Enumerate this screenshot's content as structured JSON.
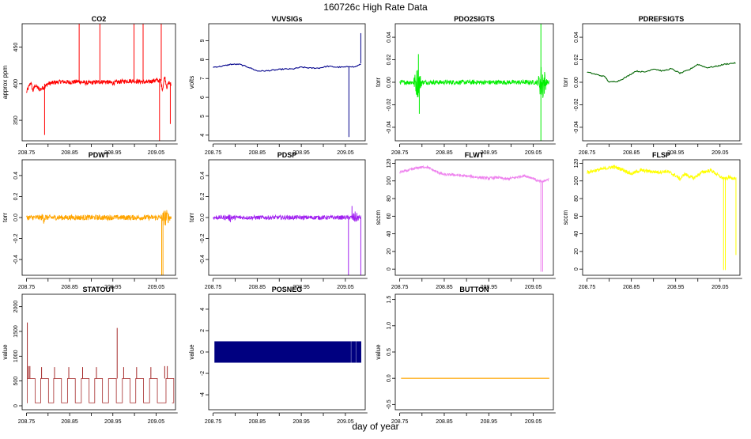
{
  "figure": {
    "title": "160726c   High Rate Data",
    "xlabel": "day of year"
  },
  "chart_data": [
    {
      "type": "line",
      "title": "CO2",
      "ylabel": "approx ppm",
      "color": "#ff0000",
      "xlim": [
        208.74,
        209.095
      ],
      "ylim": [
        322,
        482
      ],
      "yticks": [
        {
          "v": 350,
          "l": "350"
        },
        {
          "v": 400,
          "l": "400"
        },
        {
          "v": 450,
          "l": "450"
        }
      ],
      "xticks": [
        {
          "v": 208.75,
          "l": "208.75"
        },
        {
          "v": 208.85,
          "l": "208.85"
        },
        {
          "v": 208.95,
          "l": "208.95"
        },
        {
          "v": 209.05,
          "l": "209.05"
        }
      ],
      "style": "noisy",
      "amp": 3,
      "x": [
        208.75,
        208.755,
        208.76,
        208.765,
        208.77,
        208.78,
        208.79,
        208.8,
        208.81,
        208.83,
        208.85,
        208.87,
        208.89,
        208.91,
        208.93,
        208.95,
        208.97,
        208.99,
        209.01,
        209.03,
        209.05,
        209.06,
        209.065,
        209.07,
        209.075,
        209.08,
        209.085
      ],
      "y": [
        388,
        395,
        402,
        390,
        398,
        392,
        395,
        400,
        401,
        403,
        402,
        403,
        401,
        402,
        403,
        401,
        403,
        404,
        403,
        402,
        405,
        404,
        392,
        410,
        395,
        402,
        398
      ],
      "spikes": [
        {
          "x": 208.792,
          "from": 400,
          "to": 330
        },
        {
          "x": 208.872,
          "from": 402,
          "to": 482
        },
        {
          "x": 208.92,
          "from": 402,
          "to": 482
        },
        {
          "x": 208.999,
          "from": 403,
          "to": 482
        },
        {
          "x": 209.02,
          "from": 403,
          "to": 482
        },
        {
          "x": 209.058,
          "from": 404,
          "to": 322
        },
        {
          "x": 209.062,
          "from": 404,
          "to": 482
        },
        {
          "x": 209.083,
          "from": 400,
          "to": 345
        }
      ]
    },
    {
      "type": "line",
      "title": "VUVSIGs",
      "ylabel": "volts",
      "color": "#00008b",
      "xlim": [
        208.74,
        209.095
      ],
      "ylim": [
        3.7,
        9.9
      ],
      "yticks": [
        {
          "v": 4,
          "l": "4"
        },
        {
          "v": 5,
          "l": "5"
        },
        {
          "v": 6,
          "l": "6"
        },
        {
          "v": 7,
          "l": "7"
        },
        {
          "v": 8,
          "l": "8"
        },
        {
          "v": 9,
          "l": "9"
        }
      ],
      "xticks": [
        {
          "v": 208.75,
          "l": "208.75"
        },
        {
          "v": 208.85,
          "l": "208.85"
        },
        {
          "v": 208.95,
          "l": "208.95"
        },
        {
          "v": 209.05,
          "l": "209.05"
        }
      ],
      "style": "smooth",
      "amp": 0.03,
      "x": [
        208.75,
        208.77,
        208.79,
        208.81,
        208.83,
        208.85,
        208.87,
        208.89,
        208.91,
        208.93,
        208.95,
        208.97,
        208.99,
        209.01,
        209.03,
        209.05,
        209.06,
        209.07,
        209.08,
        209.085
      ],
      "y": [
        7.6,
        7.65,
        7.75,
        7.75,
        7.6,
        7.4,
        7.4,
        7.45,
        7.5,
        7.5,
        7.6,
        7.55,
        7.55,
        7.65,
        7.6,
        7.6,
        7.65,
        7.6,
        7.7,
        7.75
      ],
      "spikes": [
        {
          "x": 209.058,
          "from": 7.6,
          "to": 3.9
        },
        {
          "x": 209.085,
          "from": 7.8,
          "to": 9.4
        }
      ]
    },
    {
      "type": "line",
      "title": "PDO2SIGTS",
      "ylabel": "torr",
      "color": "#00ee00",
      "xlim": [
        208.74,
        209.095
      ],
      "ylim": [
        -0.052,
        0.052
      ],
      "yticks": [
        {
          "v": -0.04,
          "l": "-0.04"
        },
        {
          "v": -0.02,
          "l": "-0.02"
        },
        {
          "v": 0,
          "l": "0.00"
        },
        {
          "v": 0.02,
          "l": "0.02"
        },
        {
          "v": 0.04,
          "l": "0.04"
        }
      ],
      "xticks": [
        {
          "v": 208.75,
          "l": "208.75"
        },
        {
          "v": 208.85,
          "l": "208.85"
        },
        {
          "v": 208.95,
          "l": "208.95"
        },
        {
          "v": 209.05,
          "l": "209.05"
        }
      ],
      "style": "noisy",
      "amp": 0.002,
      "x": [
        208.75,
        208.78,
        208.8,
        208.85,
        208.9,
        208.95,
        209.0,
        209.05,
        209.085
      ],
      "y": [
        0,
        0,
        0,
        0,
        0,
        0,
        0,
        0,
        0
      ],
      "bursts": [
        {
          "x": 208.79,
          "w": 0.012,
          "amp": 0.015
        },
        {
          "x": 209.07,
          "w": 0.012,
          "amp": 0.02
        }
      ],
      "spikes": [
        {
          "x": 208.792,
          "from": 0,
          "to": 0.025
        },
        {
          "x": 208.794,
          "from": 0,
          "to": -0.028
        },
        {
          "x": 209.067,
          "from": 0,
          "to": 0.052
        },
        {
          "x": 209.067,
          "from": 0,
          "to": -0.052
        }
      ]
    },
    {
      "type": "line",
      "title": "PDREFSIGTS",
      "ylabel": "torr",
      "color": "#006400",
      "xlim": [
        208.74,
        209.095
      ],
      "ylim": [
        -0.052,
        0.052
      ],
      "yticks": [
        {
          "v": -0.04,
          "l": "-0.04"
        },
        {
          "v": -0.02,
          "l": "-0.02"
        },
        {
          "v": 0,
          "l": "0.00"
        },
        {
          "v": 0.02,
          "l": "0.02"
        },
        {
          "v": 0.04,
          "l": "0.04"
        }
      ],
      "xticks": [
        {
          "v": 208.75,
          "l": "208.75"
        },
        {
          "v": 208.85,
          "l": "208.85"
        },
        {
          "v": 208.95,
          "l": "208.95"
        },
        {
          "v": 209.05,
          "l": "209.05"
        }
      ],
      "style": "smooth",
      "amp": 0.0005,
      "x": [
        208.75,
        208.77,
        208.79,
        208.8,
        208.82,
        208.84,
        208.86,
        208.88,
        208.9,
        208.92,
        208.94,
        208.96,
        208.98,
        209.0,
        209.02,
        209.04,
        209.06,
        209.08,
        209.085
      ],
      "y": [
        0.009,
        0.007,
        0.005,
        0.0,
        0.001,
        0.005,
        0.01,
        0.009,
        0.012,
        0.01,
        0.012,
        0.008,
        0.011,
        0.016,
        0.013,
        0.014,
        0.016,
        0.017,
        0.017
      ]
    },
    {
      "type": "line",
      "title": "PDWT",
      "ylabel": "torr",
      "color": "#ffa500",
      "xlim": [
        208.74,
        209.095
      ],
      "ylim": [
        -0.55,
        0.55
      ],
      "yticks": [
        {
          "v": -0.4,
          "l": "-0.4"
        },
        {
          "v": -0.2,
          "l": "-0.2"
        },
        {
          "v": 0,
          "l": "0.0"
        },
        {
          "v": 0.2,
          "l": "0.2"
        },
        {
          "v": 0.4,
          "l": "0.4"
        }
      ],
      "xticks": [
        {
          "v": 208.75,
          "l": "208.75"
        },
        {
          "v": 208.85,
          "l": "208.85"
        },
        {
          "v": 208.95,
          "l": "208.95"
        },
        {
          "v": 209.05,
          "l": "209.05"
        }
      ],
      "style": "noisy",
      "amp": 0.025,
      "x": [
        208.75,
        208.8,
        208.85,
        208.9,
        208.95,
        209.0,
        209.05,
        209.085
      ],
      "y": [
        0,
        0,
        0,
        0,
        0,
        0,
        0,
        0
      ],
      "bursts": [
        {
          "x": 208.79,
          "w": 0.01,
          "amp": 0.06
        },
        {
          "x": 209.072,
          "w": 0.015,
          "amp": 0.09
        }
      ],
      "spikes": [
        {
          "x": 209.063,
          "from": 0,
          "to": -0.55
        },
        {
          "x": 209.066,
          "from": 0,
          "to": -0.55
        }
      ]
    },
    {
      "type": "line",
      "title": "PDSP",
      "ylabel": "torr",
      "color": "#a020f0",
      "xlim": [
        208.74,
        209.095
      ],
      "ylim": [
        -0.55,
        0.55
      ],
      "yticks": [
        {
          "v": -0.4,
          "l": "-0.4"
        },
        {
          "v": -0.2,
          "l": "-0.2"
        },
        {
          "v": 0,
          "l": "0.0"
        },
        {
          "v": 0.2,
          "l": "0.2"
        },
        {
          "v": 0.4,
          "l": "0.4"
        }
      ],
      "xticks": [
        {
          "v": 208.75,
          "l": "208.75"
        },
        {
          "v": 208.85,
          "l": "208.85"
        },
        {
          "v": 208.95,
          "l": "208.95"
        },
        {
          "v": 209.05,
          "l": "209.05"
        }
      ],
      "style": "noisy",
      "amp": 0.02,
      "x": [
        208.75,
        208.8,
        208.85,
        208.9,
        208.95,
        209.0,
        209.05,
        209.085
      ],
      "y": [
        0,
        0,
        0,
        0,
        0,
        0,
        0,
        0
      ],
      "bursts": [
        {
          "x": 208.79,
          "w": 0.01,
          "amp": 0.05
        },
        {
          "x": 209.072,
          "w": 0.015,
          "amp": 0.06
        }
      ],
      "spikes": [
        {
          "x": 209.057,
          "from": 0,
          "to": -0.55
        },
        {
          "x": 209.065,
          "from": 0,
          "to": 0.11
        },
        {
          "x": 209.085,
          "from": 0,
          "to": -0.55
        }
      ]
    },
    {
      "type": "line",
      "title": "FLWT",
      "ylabel": "sccm",
      "color": "#ee82ee",
      "xlim": [
        208.74,
        209.095
      ],
      "ylim": [
        -7,
        124
      ],
      "yticks": [
        {
          "v": 0,
          "l": "0"
        },
        {
          "v": 20,
          "l": "20"
        },
        {
          "v": 40,
          "l": "40"
        },
        {
          "v": 60,
          "l": "60"
        },
        {
          "v": 80,
          "l": "80"
        },
        {
          "v": 100,
          "l": "100"
        },
        {
          "v": 120,
          "l": "120"
        }
      ],
      "xticks": [
        {
          "v": 208.75,
          "l": "208.75"
        },
        {
          "v": 208.85,
          "l": "208.85"
        },
        {
          "v": 208.95,
          "l": "208.95"
        },
        {
          "v": 209.05,
          "l": "209.05"
        }
      ],
      "style": "noisy",
      "amp": 1.5,
      "x": [
        208.75,
        208.77,
        208.79,
        208.81,
        208.83,
        208.85,
        208.87,
        208.89,
        208.91,
        208.93,
        208.95,
        208.97,
        208.99,
        209.01,
        209.03,
        209.05,
        209.06,
        209.07,
        209.08,
        209.085
      ],
      "y": [
        110,
        112,
        115,
        116,
        111,
        107,
        107,
        106,
        105,
        104,
        103,
        104,
        102,
        104,
        106,
        103,
        100,
        99,
        101,
        102
      ],
      "spikes": [
        {
          "x": 209.067,
          "from": 100,
          "to": -3
        },
        {
          "x": 209.071,
          "from": 100,
          "to": -3
        }
      ]
    },
    {
      "type": "line",
      "title": "FLSP",
      "ylabel": "sccm",
      "color": "#ffff00",
      "xlim": [
        208.74,
        209.095
      ],
      "ylim": [
        -7,
        124
      ],
      "yticks": [
        {
          "v": 0,
          "l": "0"
        },
        {
          "v": 20,
          "l": "20"
        },
        {
          "v": 40,
          "l": "40"
        },
        {
          "v": 60,
          "l": "60"
        },
        {
          "v": 80,
          "l": "80"
        },
        {
          "v": 100,
          "l": "100"
        },
        {
          "v": 120,
          "l": "120"
        }
      ],
      "xticks": [
        {
          "v": 208.75,
          "l": "208.75"
        },
        {
          "v": 208.85,
          "l": "208.85"
        },
        {
          "v": 208.95,
          "l": "208.95"
        },
        {
          "v": 209.05,
          "l": "209.05"
        }
      ],
      "style": "noisy",
      "amp": 2,
      "x": [
        208.75,
        208.77,
        208.79,
        208.81,
        208.83,
        208.85,
        208.87,
        208.89,
        208.91,
        208.93,
        208.95,
        208.96,
        208.97,
        208.99,
        209.01,
        209.03,
        209.05,
        209.06,
        209.07,
        209.085
      ],
      "y": [
        110,
        112,
        114,
        116,
        113,
        108,
        112,
        111,
        110,
        111,
        106,
        102,
        108,
        103,
        110,
        112,
        105,
        102,
        104,
        103
      ],
      "spikes": [
        {
          "x": 209.058,
          "from": 104,
          "to": -1
        },
        {
          "x": 209.062,
          "from": 104,
          "to": -1
        },
        {
          "x": 209.086,
          "from": 104,
          "to": 16
        }
      ]
    },
    {
      "type": "line",
      "title": "STATOUT",
      "ylabel": "value",
      "color": "#a52a2a",
      "xlim": [
        208.74,
        209.095
      ],
      "ylim": [
        -80,
        2250
      ],
      "yticks": [
        {
          "v": 0,
          "l": "0"
        },
        {
          "v": 500,
          "l": "500"
        },
        {
          "v": 1000,
          "l": "1000"
        },
        {
          "v": 1500,
          "l": "1500"
        },
        {
          "v": 2000,
          "l": "2000"
        }
      ],
      "xticks": [
        {
          "v": 208.75,
          "l": "208.75"
        },
        {
          "v": 208.85,
          "l": "208.85"
        },
        {
          "v": 208.95,
          "l": "208.95"
        },
        {
          "v": 209.05,
          "l": "209.05"
        }
      ],
      "style": "step",
      "base": 60,
      "high": 550,
      "pulses": [
        208.752,
        208.783,
        208.813,
        208.845,
        208.877,
        208.908,
        208.94,
        208.972,
        209.003,
        209.035,
        209.073
      ],
      "spikes": [
        {
          "x": 208.752,
          "from": 550,
          "to": 1680
        },
        {
          "x": 208.755,
          "from": 550,
          "to": 800
        },
        {
          "x": 208.758,
          "from": 550,
          "to": 800
        },
        {
          "x": 208.785,
          "from": 550,
          "to": 780
        },
        {
          "x": 208.815,
          "from": 550,
          "to": 780
        },
        {
          "x": 208.848,
          "from": 550,
          "to": 780
        },
        {
          "x": 208.88,
          "from": 550,
          "to": 780
        },
        {
          "x": 208.912,
          "from": 550,
          "to": 780
        },
        {
          "x": 208.96,
          "from": 550,
          "to": 1570
        },
        {
          "x": 208.975,
          "from": 550,
          "to": 780
        },
        {
          "x": 209.005,
          "from": 550,
          "to": 780
        },
        {
          "x": 209.038,
          "from": 550,
          "to": 780
        },
        {
          "x": 209.07,
          "from": 550,
          "to": 800
        },
        {
          "x": 209.076,
          "from": 550,
          "to": 800
        }
      ]
    },
    {
      "type": "area",
      "title": "POSNEG",
      "ylabel": "value",
      "color": "#000080",
      "xlim": [
        208.74,
        209.095
      ],
      "ylim": [
        -5.4,
        5.4
      ],
      "yticks": [
        {
          "v": -4,
          "l": "-4"
        },
        {
          "v": -2,
          "l": "-2"
        },
        {
          "v": 0,
          "l": "0"
        },
        {
          "v": 2,
          "l": "2"
        },
        {
          "v": 4,
          "l": "4"
        }
      ],
      "xticks": [
        {
          "v": 208.75,
          "l": "208.75"
        },
        {
          "v": 208.85,
          "l": "208.85"
        },
        {
          "v": 208.95,
          "l": "208.95"
        },
        {
          "v": 209.05,
          "l": "209.05"
        }
      ],
      "x": [
        208.753,
        209.086
      ],
      "lower": -1,
      "upper": 1,
      "gaps": [
        209.063,
        209.074
      ]
    },
    {
      "type": "line",
      "title": "BUTTON",
      "ylabel": "value",
      "color": "#ffa500",
      "xlim": [
        208.74,
        209.095
      ],
      "ylim": [
        -0.6,
        1.6
      ],
      "yticks": [
        {
          "v": -0.5,
          "l": "-0.5"
        },
        {
          "v": 0,
          "l": "0.0"
        },
        {
          "v": 0.5,
          "l": "0.5"
        },
        {
          "v": 1,
          "l": "1.0"
        },
        {
          "v": 1.5,
          "l": "1.5"
        }
      ],
      "xticks": [
        {
          "v": 208.75,
          "l": "208.75"
        },
        {
          "v": 208.85,
          "l": "208.85"
        },
        {
          "v": 208.95,
          "l": "208.95"
        },
        {
          "v": 209.05,
          "l": "209.05"
        }
      ],
      "style": "smooth",
      "amp": 0,
      "x": [
        208.753,
        209.086
      ],
      "y": [
        0,
        0
      ]
    }
  ]
}
